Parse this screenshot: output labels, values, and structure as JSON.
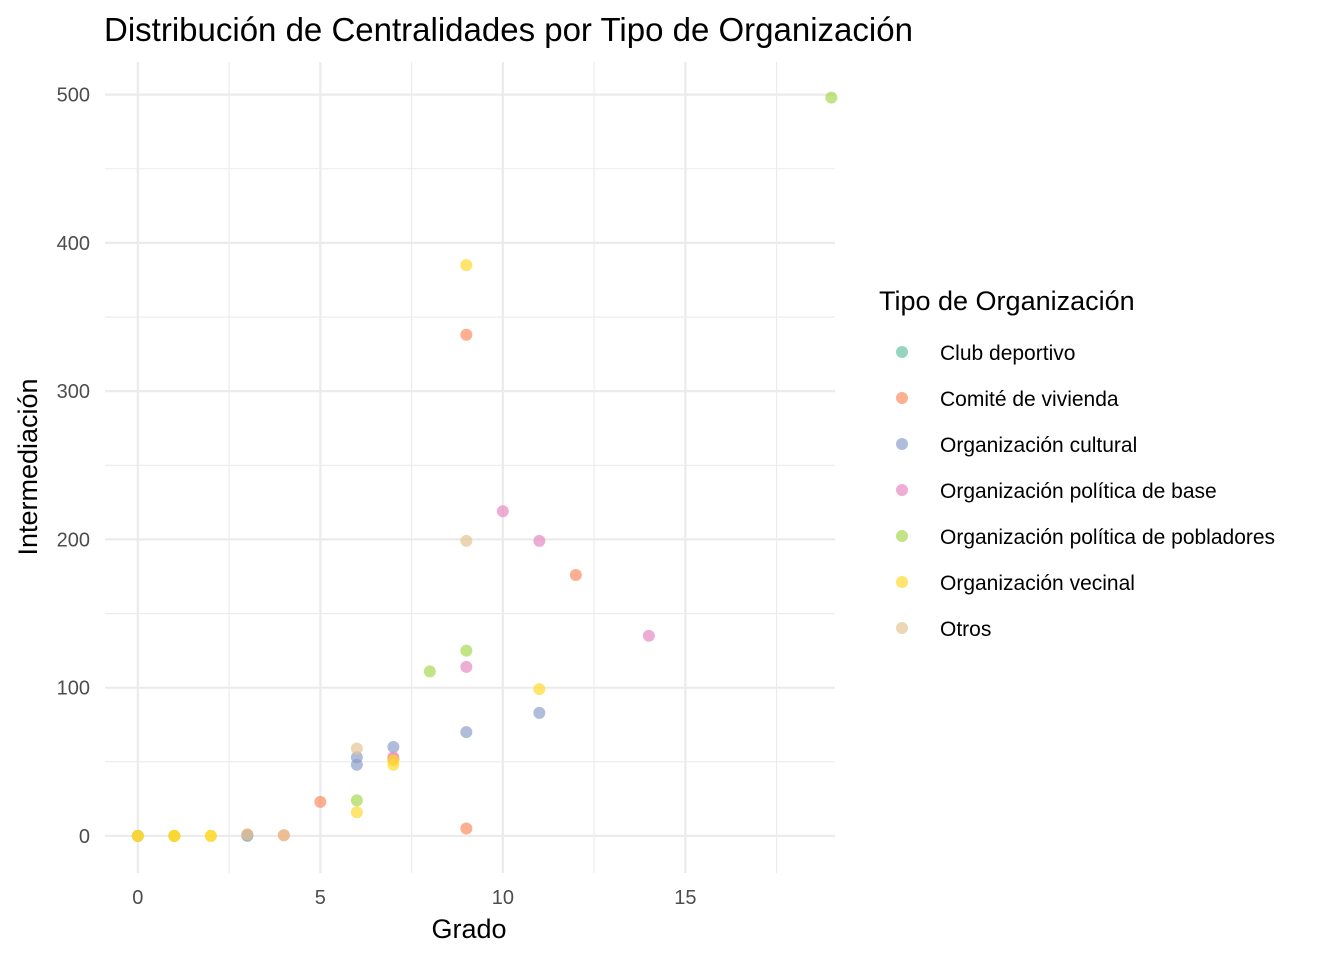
{
  "chart_data": {
    "type": "scatter",
    "title": "Distribución de Centralidades por Tipo de Organización",
    "xlabel": "Grado",
    "ylabel": "Intermediación",
    "xlim": [
      -0.9,
      19.1
    ],
    "ylim": [
      -25,
      522
    ],
    "x_ticks": [
      0,
      5,
      10,
      15
    ],
    "y_ticks": [
      0,
      100,
      200,
      300,
      400,
      500
    ],
    "grid": true,
    "legend": {
      "title": "Tipo de Organización",
      "position": "right"
    },
    "series": [
      {
        "name": "Club deportivo",
        "color": "#66c2a5",
        "points": [
          [
            3,
            0.5
          ]
        ]
      },
      {
        "name": "Comité de vivienda",
        "color": "#fc8d62",
        "points": [
          [
            9,
            338
          ],
          [
            12,
            176
          ],
          [
            5,
            23
          ],
          [
            9,
            5
          ],
          [
            7,
            52
          ],
          [
            3,
            1
          ],
          [
            4,
            0.5
          ],
          [
            0,
            0
          ],
          [
            1,
            0
          ]
        ]
      },
      {
        "name": "Organización cultural",
        "color": "#8da0cb",
        "points": [
          [
            11,
            83
          ],
          [
            9,
            70
          ],
          [
            7,
            60
          ],
          [
            6,
            53
          ],
          [
            6,
            48
          ],
          [
            3,
            0
          ],
          [
            0,
            0
          ]
        ]
      },
      {
        "name": "Organización política de base",
        "color": "#e78ac3",
        "points": [
          [
            10,
            219
          ],
          [
            11,
            199
          ],
          [
            14,
            135
          ],
          [
            9,
            114
          ],
          [
            7,
            53
          ]
        ]
      },
      {
        "name": "Organización política de pobladores",
        "color": "#a6d854",
        "points": [
          [
            19,
            498
          ],
          [
            9,
            125
          ],
          [
            8,
            111
          ],
          [
            6,
            24
          ],
          [
            1,
            0
          ]
        ]
      },
      {
        "name": "Organización vecinal",
        "color": "#ffd92f",
        "points": [
          [
            9,
            385
          ],
          [
            11,
            99
          ],
          [
            7,
            51
          ],
          [
            7,
            48
          ],
          [
            6,
            16
          ],
          [
            0,
            0
          ],
          [
            1,
            0
          ],
          [
            2,
            0
          ],
          [
            0,
            0
          ],
          [
            1,
            0
          ],
          [
            2,
            0
          ]
        ]
      },
      {
        "name": "Otros",
        "color": "#e5c494",
        "points": [
          [
            9,
            199
          ],
          [
            6,
            59
          ],
          [
            4,
            0.5
          ],
          [
            3,
            1
          ]
        ]
      }
    ]
  }
}
